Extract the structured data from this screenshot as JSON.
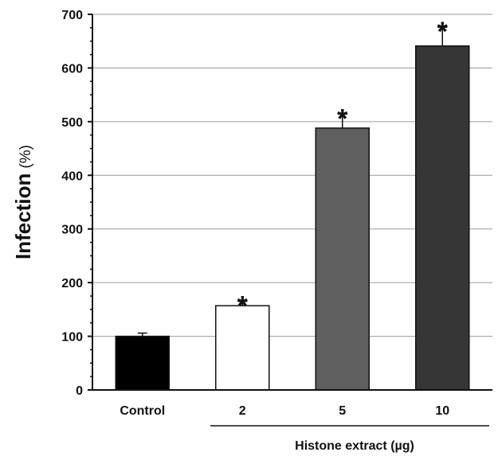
{
  "chart_data": {
    "type": "bar",
    "title": "",
    "ylabel": "Infection",
    "ylabel_unit": "(%)",
    "xlabel": "Histone extract (µg)",
    "categories": [
      "Control",
      "2",
      "5",
      "10"
    ],
    "values": [
      100,
      157,
      488,
      641
    ],
    "errors": [
      6,
      8,
      26,
      35
    ],
    "significance": [
      "",
      "*",
      "*",
      "*"
    ],
    "bar_colors": [
      "#000000",
      "#ffffff",
      "#5f5f5f",
      "#363636"
    ],
    "ylim": [
      0,
      700
    ],
    "yticks": [
      "0",
      "100",
      "200",
      "300",
      "400",
      "500",
      "600",
      "700"
    ],
    "grid": true,
    "legend": "none"
  }
}
